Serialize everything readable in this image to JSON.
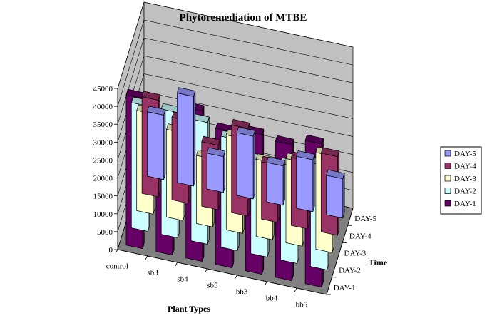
{
  "chart_data": {
    "type": "bar",
    "subtype": "3d-column",
    "title": "Phytoremediation of MTBE",
    "xlabel": "Plant Types",
    "zlabel": "Time",
    "ylabel": "",
    "categories": [
      "control",
      "sb3",
      "sb4",
      "sb5",
      "bb3",
      "bb4",
      "bb5"
    ],
    "ylim": [
      0,
      45000
    ],
    "yticks": [
      "0",
      "5000",
      "10000",
      "15000",
      "20000",
      "25000",
      "30000",
      "35000",
      "40000",
      "45000"
    ],
    "grid": true,
    "legend_position": "right",
    "series": [
      {
        "name": "DAY-5",
        "color": "#9999ff",
        "values": [
          18000,
          25000,
          10000,
          17500,
          11000,
          14500,
          11000
        ]
      },
      {
        "name": "DAY-4",
        "color": "#993366",
        "values": [
          27000,
          23000,
          18000,
          24500,
          16000,
          19000,
          22000
        ]
      },
      {
        "name": "DAY-3",
        "color": "#ffffcc",
        "values": [
          28000,
          24500,
          19000,
          26500,
          21500,
          23500,
          27000
        ]
      },
      {
        "name": "DAY-2",
        "color": "#ccffff",
        "values": [
          35000,
          35000,
          34000,
          31000,
          26500,
          27000,
          29000
        ]
      },
      {
        "name": "DAY-1",
        "color": "#660066",
        "values": [
          42000,
          38000,
          42000,
          38000,
          39000,
          38000,
          40000
        ]
      }
    ]
  }
}
